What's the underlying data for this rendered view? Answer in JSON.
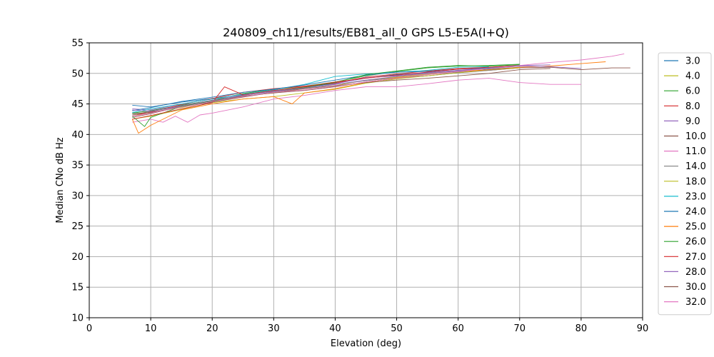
{
  "chart_data": {
    "type": "line",
    "title": "240809_ch11/results/EB81_all_0 GPS L5-E5A(I+Q)",
    "xlabel": "Elevation (deg)",
    "ylabel": "Median CNo dB Hz",
    "xlim": [
      0,
      90
    ],
    "ylim": [
      10,
      55
    ],
    "xticks": [
      0,
      10,
      20,
      30,
      40,
      50,
      60,
      70,
      80,
      90
    ],
    "yticks": [
      10,
      15,
      20,
      25,
      30,
      35,
      40,
      45,
      50,
      55
    ],
    "grid": true,
    "legend_position": "right, outside plot",
    "series": [
      {
        "name": "3.0",
        "color": "#1f77b4",
        "x": [
          7,
          10,
          15,
          20,
          25,
          30,
          35,
          40,
          45,
          50,
          55,
          60,
          65,
          70
        ],
        "y": [
          44.8,
          44.5,
          45.3,
          45.9,
          46.5,
          47.2,
          47.6,
          48.4,
          49.2,
          49.8,
          50.1,
          50.5,
          50.7,
          51.0
        ]
      },
      {
        "name": "4.0",
        "color": "#bcbd22",
        "x": [
          7,
          10,
          15,
          20,
          25,
          30,
          35,
          40,
          45,
          50,
          55,
          60,
          65,
          70
        ],
        "y": [
          43.2,
          43.6,
          44.4,
          45.4,
          46.3,
          46.8,
          47.5,
          48.0,
          48.9,
          49.4,
          49.9,
          50.4,
          50.8,
          51.2
        ]
      },
      {
        "name": "6.0",
        "color": "#2ca02c",
        "x": [
          7,
          10,
          15,
          20,
          25,
          30,
          35,
          40,
          45,
          50,
          55,
          60,
          65,
          70
        ],
        "y": [
          43.5,
          43.9,
          44.8,
          45.6,
          46.7,
          47.4,
          47.9,
          48.6,
          49.6,
          50.3,
          50.9,
          51.2,
          51.3,
          51.5
        ]
      },
      {
        "name": "8.0",
        "color": "#d62728",
        "x": [
          7,
          10,
          15,
          20,
          25,
          30,
          35,
          40,
          45,
          50,
          55,
          60,
          65,
          70
        ],
        "y": [
          43.0,
          43.7,
          44.9,
          45.9,
          46.9,
          47.5,
          47.9,
          48.4,
          49.4,
          49.9,
          50.4,
          50.8,
          51.0,
          51.3
        ]
      },
      {
        "name": "9.0",
        "color": "#9467bd",
        "x": [
          7,
          10,
          15,
          20,
          25,
          30,
          35,
          40,
          45,
          50,
          55,
          60,
          65,
          70,
          75
        ],
        "y": [
          44.2,
          44.0,
          45.0,
          45.8,
          46.5,
          47.1,
          47.6,
          48.3,
          49.3,
          49.6,
          50.1,
          50.5,
          50.9,
          51.3,
          51.4
        ]
      },
      {
        "name": "10.0",
        "color": "#8c564b",
        "x": [
          7,
          10,
          15,
          20,
          25,
          30,
          35,
          40,
          45,
          50,
          55,
          60,
          65,
          70,
          75,
          80,
          85,
          88
        ],
        "y": [
          42.8,
          43.4,
          44.6,
          45.5,
          46.3,
          46.8,
          47.2,
          47.8,
          48.6,
          49.2,
          49.6,
          50.1,
          50.5,
          50.9,
          51.0,
          50.6,
          50.9,
          50.9
        ]
      },
      {
        "name": "11.0",
        "color": "#e377c2",
        "x": [
          7,
          10,
          12,
          14,
          16,
          18,
          20,
          25,
          30,
          35,
          40,
          45,
          50,
          55,
          60,
          65,
          70,
          75,
          80
        ],
        "y": [
          42.0,
          42.5,
          42.0,
          43.0,
          42.0,
          43.2,
          43.5,
          44.5,
          45.8,
          46.4,
          47.2,
          47.8,
          47.8,
          48.3,
          48.9,
          49.2,
          48.5,
          48.2,
          48.2
        ]
      },
      {
        "name": "14.0",
        "color": "#7f7f7f",
        "x": [
          7,
          10,
          15,
          20,
          25,
          30,
          35,
          40,
          45,
          50,
          55,
          60,
          65,
          70
        ],
        "y": [
          43.2,
          43.8,
          44.6,
          45.4,
          46.2,
          47.0,
          47.6,
          48.2,
          48.8,
          49.3,
          49.6,
          50.2,
          50.5,
          50.9
        ]
      },
      {
        "name": "18.0",
        "color": "#bcbd22",
        "x": [
          7,
          10,
          15,
          20,
          25,
          30,
          35,
          40,
          45,
          50,
          55,
          60,
          65,
          70
        ],
        "y": [
          42.5,
          43.0,
          44.1,
          45.2,
          45.8,
          46.2,
          46.8,
          47.4,
          48.4,
          49.1,
          49.6,
          50.1,
          50.6,
          50.9
        ]
      },
      {
        "name": "23.0",
        "color": "#17becf",
        "x": [
          7,
          10,
          15,
          20,
          25,
          30,
          35,
          40,
          45,
          50,
          55,
          60,
          65
        ],
        "y": [
          43.6,
          44.2,
          45.0,
          45.8,
          46.6,
          47.3,
          48.2,
          49.5,
          49.9,
          50.2,
          50.5,
          51.0,
          51.1
        ]
      },
      {
        "name": "24.0",
        "color": "#1f77b4",
        "x": [
          7,
          10,
          15,
          20,
          25,
          30,
          35,
          40,
          45,
          50,
          55,
          60,
          65,
          70
        ],
        "y": [
          43.9,
          44.4,
          45.4,
          46.1,
          46.9,
          47.4,
          48.1,
          48.9,
          49.7,
          50.2,
          50.3,
          50.7,
          50.9,
          51.2
        ]
      },
      {
        "name": "25.0",
        "color": "#ff7f0e",
        "x": [
          7,
          8,
          10,
          15,
          20,
          25,
          30,
          33,
          35,
          40,
          45,
          50,
          55,
          60,
          65,
          70,
          75,
          80,
          84
        ],
        "y": [
          42.5,
          40.2,
          41.5,
          44.0,
          45.0,
          45.8,
          46.2,
          45.0,
          46.8,
          47.5,
          48.5,
          49.3,
          49.8,
          50.3,
          50.6,
          51.0,
          51.2,
          51.6,
          51.9
        ]
      },
      {
        "name": "26.0",
        "color": "#2ca02c",
        "x": [
          7,
          9,
          10,
          15,
          20,
          25,
          30,
          35,
          40,
          45,
          50,
          55,
          60,
          65,
          70
        ],
        "y": [
          43.0,
          41.3,
          42.8,
          44.6,
          45.5,
          46.4,
          47.2,
          47.7,
          48.5,
          49.8,
          50.4,
          51.0,
          51.3,
          51.2,
          51.4
        ]
      },
      {
        "name": "27.0",
        "color": "#d62728",
        "x": [
          7,
          10,
          15,
          20,
          22,
          25,
          30,
          35,
          40,
          45,
          50,
          55,
          60,
          65,
          70
        ],
        "y": [
          42.5,
          43.1,
          44.2,
          45.2,
          47.8,
          46.5,
          47.2,
          47.8,
          48.6,
          49.2,
          49.7,
          50.2,
          50.7,
          51.0,
          51.3
        ]
      },
      {
        "name": "28.0",
        "color": "#9467bd",
        "x": [
          7,
          10,
          15,
          20,
          25,
          30,
          35,
          40,
          45,
          50,
          55,
          60,
          65,
          70,
          75,
          80
        ],
        "y": [
          44.0,
          43.8,
          44.7,
          45.6,
          46.4,
          47.1,
          47.6,
          48.2,
          48.9,
          49.5,
          50.0,
          50.4,
          50.8,
          51.2,
          51.1,
          50.8
        ]
      },
      {
        "name": "30.0",
        "color": "#8c564b",
        "x": [
          7,
          10,
          15,
          20,
          25,
          30,
          35,
          40,
          45,
          50,
          55,
          60,
          65,
          70,
          75
        ],
        "y": [
          43.4,
          43.6,
          44.5,
          45.3,
          46.1,
          46.9,
          47.5,
          48.0,
          48.5,
          48.9,
          49.2,
          49.6,
          50.0,
          50.6,
          50.8
        ]
      },
      {
        "name": "32.0",
        "color": "#e377c2",
        "x": [
          7,
          10,
          15,
          20,
          25,
          30,
          35,
          40,
          45,
          50,
          55,
          60,
          65,
          70,
          75,
          80,
          85,
          87
        ],
        "y": [
          43.0,
          43.5,
          44.5,
          45.4,
          46.2,
          46.9,
          47.3,
          47.9,
          48.6,
          49.2,
          49.8,
          50.3,
          50.8,
          51.3,
          51.8,
          52.2,
          52.8,
          53.2
        ]
      }
    ]
  }
}
